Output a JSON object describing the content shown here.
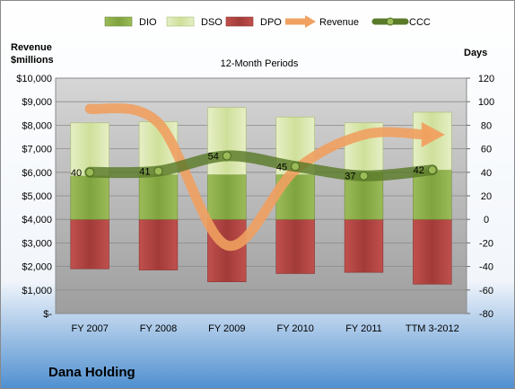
{
  "company_name": "Dana Holding",
  "colors": {
    "dio": "#8fb04a",
    "dso": "#d7e6a8",
    "dpo": "#b84040",
    "revenue": "#f0a060",
    "ccc": "#5a7a2a",
    "background_top": "#ffffff",
    "background_bottom": "#5b9bd5",
    "plot_area": "#b8b8b8"
  },
  "chart_data": {
    "type": "bar",
    "title": "12-Month Periods",
    "ylabel_left": "Revenue $millions",
    "ylabel_right": "Days",
    "categories": [
      "FY 2007",
      "FY 2008",
      "FY 2009",
      "FY 2010",
      "FY 2011",
      "TTM 3-2012"
    ],
    "left_axis": {
      "ylim": [
        0,
        10000
      ],
      "tick_labels": [
        "$-",
        "$1,000",
        "$2,000",
        "$3,000",
        "$4,000",
        "$5,000",
        "$6,000",
        "$7,000",
        "$8,000",
        "$9,000",
        "$10,000"
      ]
    },
    "right_axis": {
      "ylim": [
        -80,
        120
      ],
      "tick_labels": [
        "-80",
        "-60",
        "-40",
        "-20",
        "0",
        "20",
        "40",
        "60",
        "80",
        "100",
        "120"
      ]
    },
    "grid": true,
    "legend_position": "top",
    "legend": [
      "DIO",
      "DSO",
      "DPO",
      "Revenue",
      "CCC"
    ],
    "series": [
      {
        "name": "DIO",
        "type": "bar",
        "axis": "right",
        "values": [
          37,
          38,
          38,
          38,
          40,
          42
        ]
      },
      {
        "name": "DSO",
        "type": "bar",
        "axis": "right",
        "values": [
          45,
          45,
          57,
          49,
          42,
          49
        ]
      },
      {
        "name": "DPO",
        "type": "bar",
        "axis": "right",
        "values": [
          -42,
          -43,
          -53,
          -46,
          -45,
          -55
        ]
      },
      {
        "name": "Revenue",
        "type": "line",
        "axis": "left",
        "values": [
          8700,
          8100,
          2900,
          6100,
          7600,
          7600
        ]
      },
      {
        "name": "CCC",
        "type": "line",
        "axis": "right",
        "values": [
          40,
          41,
          54,
          45,
          37,
          42
        ],
        "data_labels": [
          "40",
          "41",
          "54",
          "45",
          "37",
          "42"
        ]
      }
    ]
  }
}
